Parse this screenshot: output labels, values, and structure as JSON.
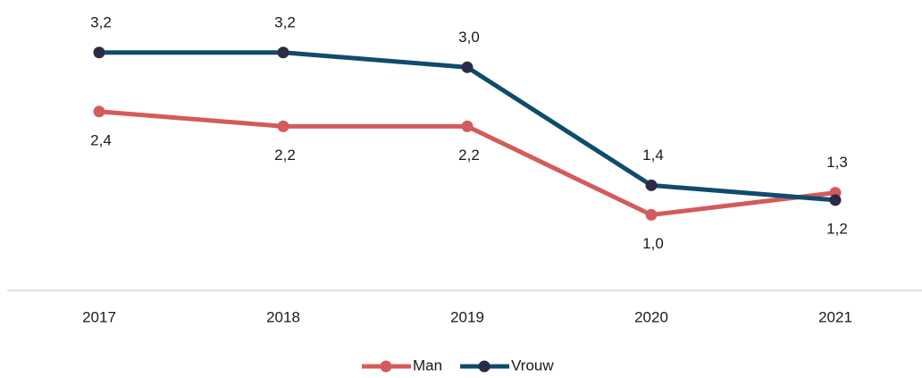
{
  "chart_data": {
    "type": "line",
    "categories": [
      "2017",
      "2018",
      "2019",
      "2020",
      "2021"
    ],
    "series": [
      {
        "name": "Man",
        "color": "#d45b5b",
        "marker_color": "#d45b5b",
        "values": [
          2.4,
          2.2,
          2.2,
          1.0,
          1.3
        ],
        "value_labels": [
          "2,4",
          "2,2",
          "2,2",
          "1,0",
          "1,3"
        ]
      },
      {
        "name": "Vrouw",
        "color": "#0f4c6c",
        "marker_color": "#2b2b45",
        "values": [
          3.2,
          3.2,
          3.0,
          1.4,
          1.2
        ],
        "value_labels": [
          "3,2",
          "3,2",
          "3,0",
          "1,4",
          "1,2"
        ]
      }
    ],
    "ylim": [
      0,
      3.5
    ],
    "legend": "bottom"
  }
}
